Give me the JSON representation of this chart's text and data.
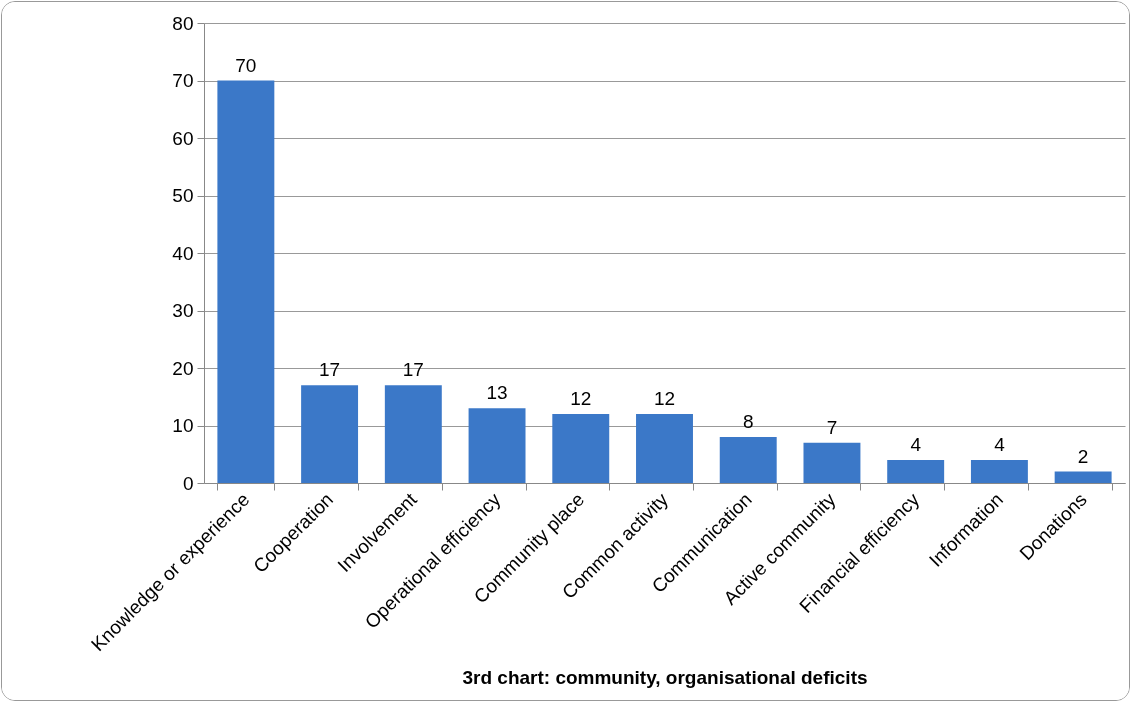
{
  "chart_data": {
    "type": "bar",
    "xlabel": "3rd chart: community, organisational deficits",
    "categories": [
      "Knowledge or experience",
      "Cooperation",
      "Involvement",
      "Operational efficiency",
      "Community place",
      "Common activity",
      "Communication",
      "Active community",
      "Financial efficiency",
      "Information",
      "Donations"
    ],
    "values": [
      70,
      17,
      17,
      13,
      12,
      12,
      8,
      7,
      4,
      4,
      2
    ],
    "color": "#3b78c8",
    "ylim": [
      0,
      80
    ],
    "yticks": [
      0,
      10,
      20,
      30,
      40,
      50,
      60,
      70,
      80
    ],
    "grid": "y",
    "data_labels": true
  }
}
